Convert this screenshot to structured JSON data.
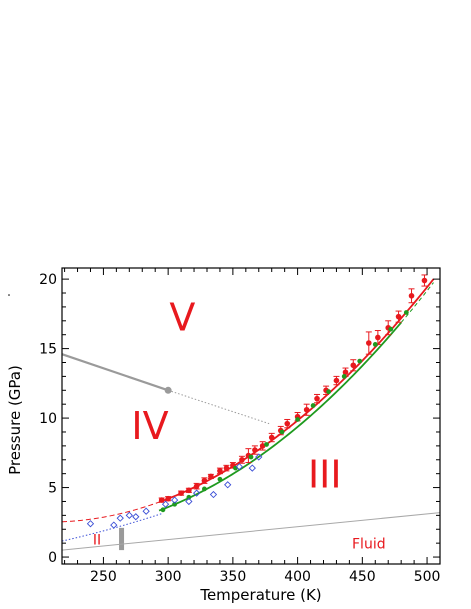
{
  "chart_data": {
    "type": "scatter",
    "title": "",
    "xlabel": "Temperature (K)",
    "ylabel": "Pressure (GPa)",
    "xlim": [
      218,
      510
    ],
    "ylim": [
      -0.5,
      20.8
    ],
    "xticks": [
      250,
      300,
      350,
      400,
      450,
      500
    ],
    "yticks": [
      0,
      5,
      10,
      15,
      20
    ],
    "grid": false,
    "legend": "none",
    "colors": {
      "red": "#e8191e",
      "green": "#1f9a1f",
      "blue": "#3b4fd6",
      "gray": "#9a9a9a",
      "fluid_line": "#a8a8a8"
    },
    "region_labels": [
      {
        "text": "V",
        "x": 311,
        "y": 16.3,
        "size": "big"
      },
      {
        "text": "IV",
        "x": 286,
        "y": 8.5,
        "size": "big"
      },
      {
        "text": "III",
        "x": 421,
        "y": 5.0,
        "size": "big"
      },
      {
        "text": "II",
        "x": 245,
        "y": 0.9,
        "size": "small"
      },
      {
        "text": "Fluid",
        "x": 455,
        "y": 0.6,
        "size": "small"
      }
    ],
    "series": [
      {
        "kind": "red-points",
        "points": [
          [
            295,
            4.1,
            0.15
          ],
          [
            300,
            4.2,
            0.15
          ],
          [
            310,
            4.6,
            0.15
          ],
          [
            316,
            4.8,
            0.15
          ],
          [
            322,
            5.1,
            0.2
          ],
          [
            328,
            5.5,
            0.2
          ],
          [
            333,
            5.8,
            0.15
          ],
          [
            340,
            6.2,
            0.2
          ],
          [
            345,
            6.4,
            0.2
          ],
          [
            350,
            6.6,
            0.2
          ],
          [
            357,
            7.0,
            0.25
          ],
          [
            362,
            7.3,
            0.5
          ],
          [
            367,
            7.7,
            0.3
          ],
          [
            373,
            8.0,
            0.3
          ],
          [
            380,
            8.6,
            0.3
          ],
          [
            387,
            9.1,
            0.3
          ],
          [
            392,
            9.6,
            0.3
          ],
          [
            400,
            10.1,
            0.3
          ],
          [
            407,
            10.6,
            0.4
          ],
          [
            415,
            11.4,
            0.3
          ],
          [
            422,
            12.0,
            0.3
          ],
          [
            430,
            12.7,
            0.3
          ],
          [
            437,
            13.3,
            0.3
          ],
          [
            443,
            13.8,
            0.4
          ],
          [
            455,
            15.4,
            0.8
          ],
          [
            462,
            15.8,
            0.5
          ],
          [
            470,
            16.5,
            0.5
          ],
          [
            478,
            17.3,
            0.4
          ],
          [
            488,
            18.8,
            0.5
          ],
          [
            498,
            19.9,
            0.4
          ]
        ]
      },
      {
        "kind": "green-points",
        "points": [
          [
            296,
            3.4
          ],
          [
            305,
            3.8
          ],
          [
            316,
            4.3
          ],
          [
            328,
            4.9
          ],
          [
            340,
            5.6
          ],
          [
            352,
            6.4
          ],
          [
            364,
            7.2
          ],
          [
            376,
            8.1
          ],
          [
            388,
            9.0
          ],
          [
            400,
            9.9
          ],
          [
            412,
            10.9
          ],
          [
            424,
            11.9
          ],
          [
            436,
            13.0
          ],
          [
            448,
            14.1
          ],
          [
            460,
            15.3
          ],
          [
            472,
            16.4
          ],
          [
            484,
            17.6
          ]
        ]
      },
      {
        "kind": "blue-diamonds",
        "points": [
          [
            240,
            2.4
          ],
          [
            258,
            2.3
          ],
          [
            263,
            2.8
          ],
          [
            270,
            3.0
          ],
          [
            275,
            2.9
          ],
          [
            283,
            3.3
          ],
          [
            298,
            3.8
          ],
          [
            305,
            4.1
          ],
          [
            316,
            4.0
          ],
          [
            322,
            4.6
          ],
          [
            335,
            4.5
          ],
          [
            346,
            5.2
          ],
          [
            355,
            6.5
          ],
          [
            365,
            6.4
          ],
          [
            370,
            7.2
          ]
        ]
      },
      {
        "kind": "red-fit",
        "x_range": [
          293,
          505
        ]
      },
      {
        "kind": "red-dashed",
        "x_range": [
          218,
          293
        ]
      },
      {
        "kind": "green-fit",
        "x_range": [
          293,
          480
        ]
      },
      {
        "kind": "green-dashed",
        "x_range": [
          480,
          505
        ]
      },
      {
        "kind": "blue-dotted",
        "x_range": [
          218,
          295
        ]
      },
      {
        "kind": "gray-boundary-solid",
        "points": [
          [
            218,
            14.6
          ],
          [
            300,
            12.0
          ]
        ]
      },
      {
        "kind": "gray-boundary-dotted",
        "points": [
          [
            300,
            12.0
          ],
          [
            378,
            9.6
          ]
        ]
      },
      {
        "kind": "gray-triple-point",
        "point": [
          300,
          12.0
        ]
      },
      {
        "kind": "gray-bar",
        "x": 264,
        "y": [
          0.5,
          2.1
        ]
      },
      {
        "kind": "fluid-line",
        "points": [
          [
            218,
            0.5
          ],
          [
            510,
            3.2
          ]
        ]
      }
    ]
  }
}
